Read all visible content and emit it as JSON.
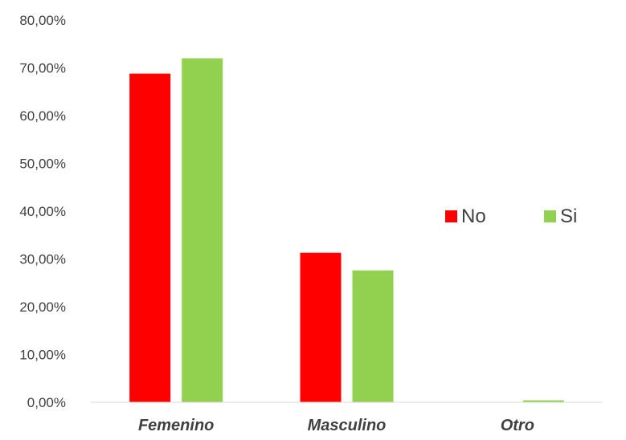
{
  "chart_data": {
    "type": "bar",
    "categories": [
      "Femenino",
      "Masculino",
      "Otro"
    ],
    "series": [
      {
        "name": "No",
        "color": "#ff0000",
        "values": [
          68.8,
          31.3,
          0.0
        ]
      },
      {
        "name": "Si",
        "color": "#92d050",
        "values": [
          72.0,
          27.6,
          0.4
        ]
      }
    ],
    "yticks": [
      "0,00%",
      "10,00%",
      "20,00%",
      "30,00%",
      "40,00%",
      "50,00%",
      "60,00%",
      "70,00%",
      "80,00%"
    ],
    "ylim": [
      0,
      80
    ],
    "grid": false,
    "legend_position": "right",
    "title": "",
    "xlabel": "",
    "ylabel": ""
  }
}
